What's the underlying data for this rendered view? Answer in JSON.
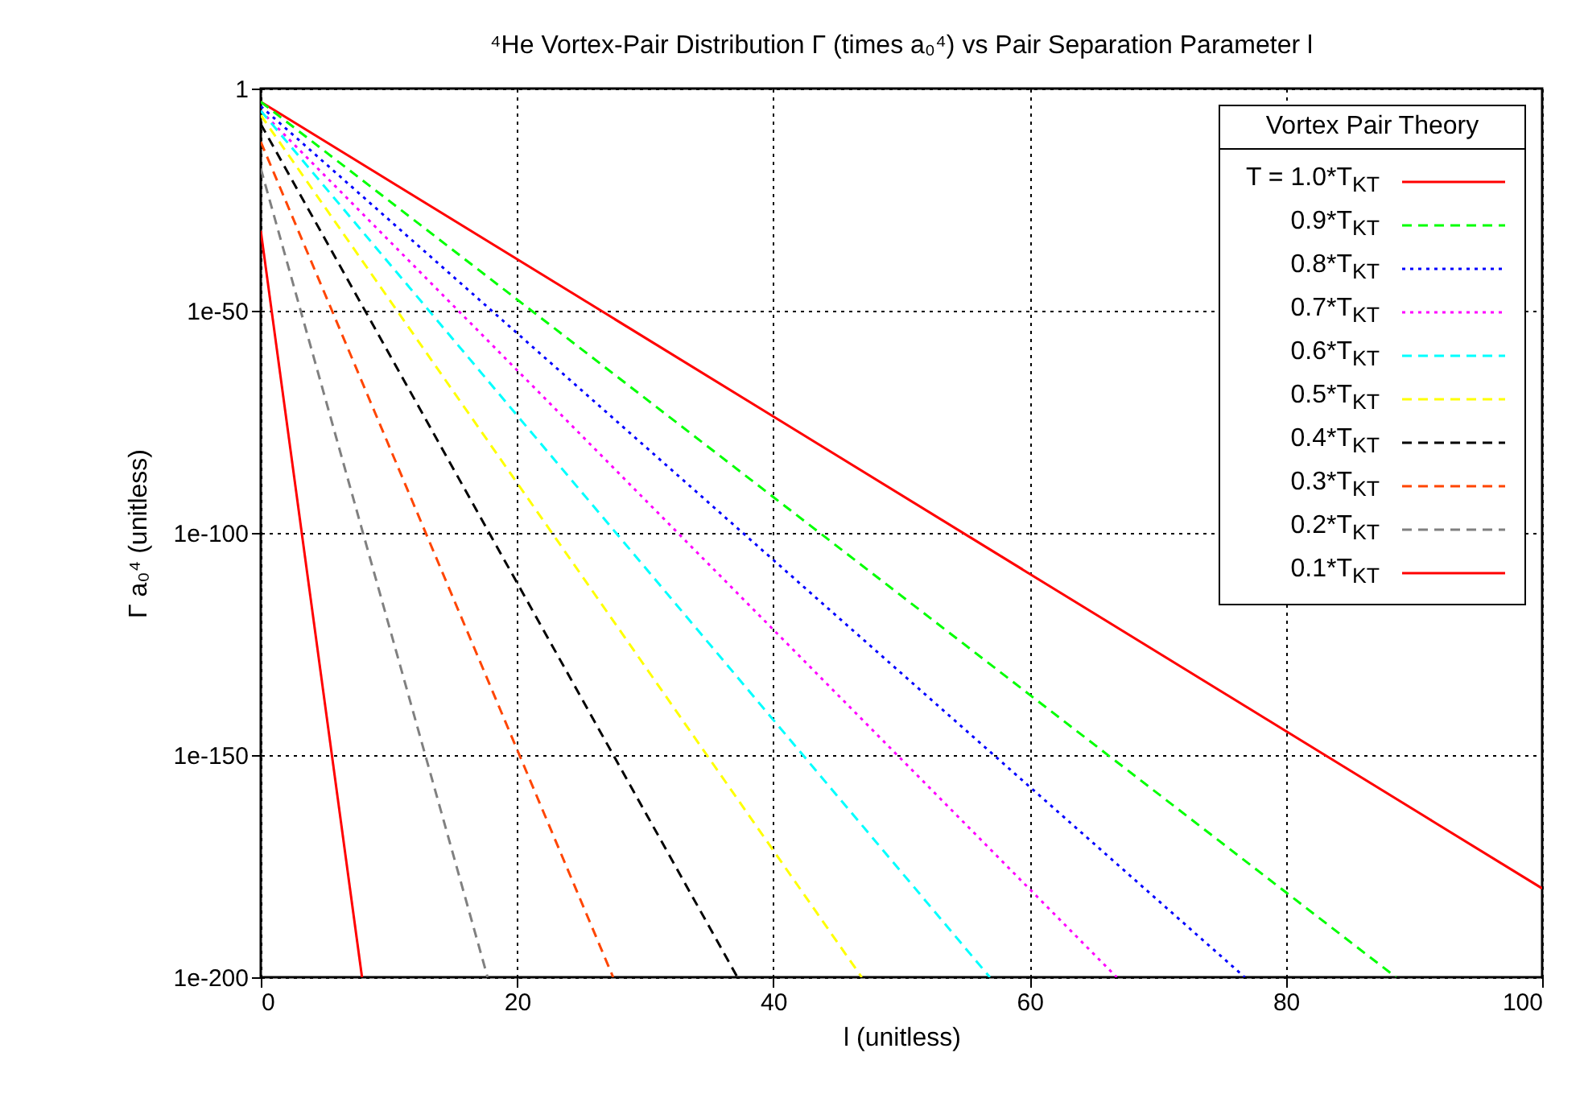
{
  "chart_data": {
    "type": "line",
    "title": "⁴He Vortex-Pair Distribution Γ (times a₀⁴) vs Pair Separation Parameter l",
    "xlabel": "l (unitless)",
    "ylabel": "Γ a₀⁴ (unitless)",
    "legend_title": "Vortex Pair Theory",
    "xlim": [
      0,
      100
    ],
    "xticks": [
      0,
      20,
      40,
      60,
      80,
      100
    ],
    "ylim": [
      1e-200,
      1
    ],
    "yticks": [
      {
        "value": 1e-200,
        "label": "1e-200"
      },
      {
        "value": 1e-150,
        "label": "1e-150"
      },
      {
        "value": 1e-100,
        "label": "1e-100"
      },
      {
        "value": 1e-50,
        "label": "1e-50"
      },
      1
    ],
    "log": "y",
    "grid": true,
    "legend": "top right",
    "marker": "none",
    "series": [
      {
        "name": "T = 1.0*T$_{KT}$",
        "color": "#ff0000",
        "line_style": "solid",
        "x": [
          0,
          100
        ],
        "values": [
          0.001,
          1e-180
        ]
      },
      {
        "name": "0.9*T$_{KT}$",
        "color": "#00ff00",
        "line_style": "dashed",
        "x": [
          0,
          88.6
        ],
        "values": [
          0.001,
          1e-200
        ]
      },
      {
        "name": "0.8*T$_{KT}$",
        "color": "#0000ff",
        "line_style": "dotted",
        "x": [
          0,
          76.8
        ],
        "values": [
          0.0001,
          1e-200
        ]
      },
      {
        "name": "0.7*T$_{KT}$",
        "color": "#ff00ff",
        "line_style": "dotted",
        "x": [
          0,
          66.8
        ],
        "values": [
          1e-05,
          1e-200
        ]
      },
      {
        "name": "0.6*T$_{KT}$",
        "color": "#00ffff",
        "line_style": "dashed",
        "x": [
          0,
          56.9
        ],
        "values": [
          1e-05,
          1e-200
        ]
      },
      {
        "name": "0.5*T$_{KT}$",
        "color": "#ffff00",
        "line_style": "dashed",
        "x": [
          0,
          46.9
        ],
        "values": [
          1e-06,
          1e-200
        ]
      },
      {
        "name": "0.4*T$_{KT}$",
        "color": "#000000",
        "line_style": "dashed",
        "x": [
          0,
          37.2
        ],
        "values": [
          1e-08,
          1e-200
        ]
      },
      {
        "name": "0.3*T$_{KT}$",
        "color": "#ff4500",
        "line_style": "dashed",
        "x": [
          0,
          27.5
        ],
        "values": [
          1e-12,
          1e-200
        ]
      },
      {
        "name": "0.2*T$_{KT}$",
        "color": "#808080",
        "line_style": "dashed",
        "x": [
          0,
          17.7
        ],
        "values": [
          1e-18,
          1e-200
        ]
      },
      {
        "name": "0.1*T$_{KT}$",
        "color": "#ff0000",
        "line_style": "solid",
        "x": [
          0,
          7.9
        ],
        "values": [
          1e-32,
          1e-200
        ]
      }
    ]
  }
}
